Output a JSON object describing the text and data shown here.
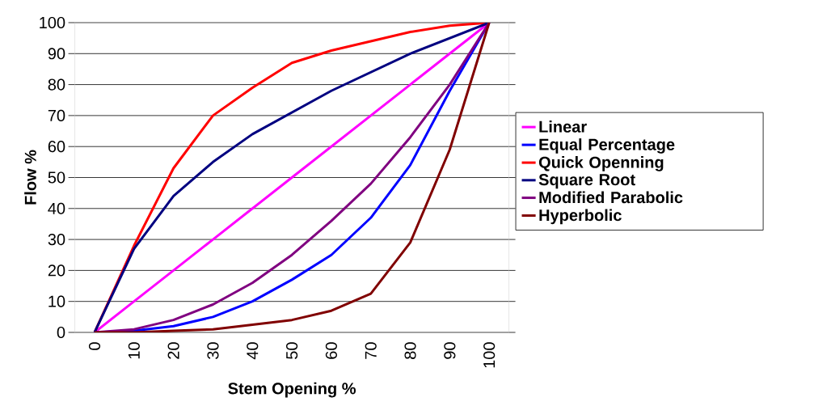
{
  "chart_data": {
    "type": "line",
    "xlabel": "Stem Opening %",
    "ylabel": "Flow %",
    "categories": [
      "0",
      "10",
      "20",
      "30",
      "40",
      "50",
      "60",
      "70",
      "80",
      "90",
      "100"
    ],
    "series": [
      {
        "name": "Linear",
        "color": "#ff00ff",
        "values": [
          0,
          10,
          20,
          30,
          40,
          50,
          60,
          70,
          80,
          90,
          100
        ]
      },
      {
        "name": "Equal Percentage",
        "color": "#0000ff",
        "values": [
          0,
          0.5,
          2,
          5,
          10,
          17,
          25,
          37,
          54,
          78,
          100
        ]
      },
      {
        "name": "Quick Openning",
        "color": "#ff0000",
        "values": [
          0,
          28,
          53,
          70,
          79,
          87,
          91,
          94,
          97,
          99,
          100
        ]
      },
      {
        "name": "Square Root",
        "color": "#000080",
        "values": [
          0,
          27,
          44,
          55,
          64,
          71,
          78,
          84,
          90,
          95,
          100
        ]
      },
      {
        "name": "Modified Parabolic",
        "color": "#800080",
        "values": [
          0,
          1,
          4,
          9,
          16,
          25,
          36,
          48,
          63,
          80,
          100
        ]
      },
      {
        "name": "Hyperbolic",
        "color": "#800000",
        "values": [
          0,
          0,
          0.5,
          1,
          2.5,
          4,
          7,
          12.5,
          29,
          59,
          100
        ]
      }
    ],
    "ylim": [
      0,
      100
    ],
    "yticks": [
      0,
      10,
      20,
      30,
      40,
      50,
      60,
      70,
      80,
      90,
      100
    ],
    "grid": "y",
    "legend": "right",
    "marker": "none",
    "line_style": "solid"
  }
}
